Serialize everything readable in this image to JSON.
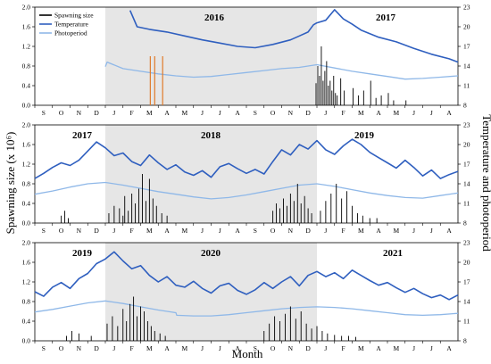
{
  "figure": {
    "left_axis_label": "Spawning size (x 10⁶)",
    "right_axis_label": "Temperature and photoperiod",
    "x_axis_label": "Month"
  },
  "legend": [
    {
      "label": "Spawning size",
      "color": "#000000"
    },
    {
      "label": "Temperature",
      "color": "#2f5fbf"
    },
    {
      "label": "Photoperiod",
      "color": "#8fb8e8"
    }
  ],
  "colors": {
    "temperature": "#2f5fbf",
    "photoperiod": "#8fb8e8",
    "spawning": "#000000",
    "marker": "#e07a2a",
    "shade": "#e6e6e6"
  },
  "chart_data": [
    {
      "type": "line",
      "panel": 1,
      "years": [
        "2016",
        "2017"
      ],
      "months": [
        "S",
        "O",
        "N",
        "D",
        "J",
        "F",
        "M",
        "A",
        "M",
        "J",
        "J",
        "A",
        "S",
        "O",
        "N",
        "D",
        "J",
        "F",
        "M",
        "A",
        "M",
        "J",
        "J",
        "A"
      ],
      "left_ticks": [
        "0.0",
        "0.4",
        "0.8",
        "1.2",
        "1.6",
        "2.0"
      ],
      "right_ticks": [
        "8",
        "11",
        "14",
        "17",
        "20",
        "23"
      ],
      "ylim_left": [
        0,
        2.0
      ],
      "ylim_right": [
        8,
        23
      ],
      "shaded_months": [
        4,
        16
      ],
      "series": [
        {
          "name": "Temperature",
          "x": [
            5.4,
            5.8,
            6.5,
            7.5,
            8.5,
            9.5,
            10.5,
            11.5,
            12.5,
            13.5,
            14.5,
            15.0,
            15.5,
            15.8,
            16.0,
            16.5,
            17.0,
            17.5,
            18.0,
            18.5,
            19.5,
            20.5,
            21.5,
            22.5,
            23.5,
            24.0
          ],
          "y": [
            22.5,
            20.0,
            19.6,
            19.2,
            18.6,
            18.0,
            17.5,
            17.0,
            16.8,
            17.3,
            18.0,
            18.6,
            19.2,
            20.3,
            20.6,
            21.0,
            22.6,
            21.2,
            20.4,
            19.5,
            18.4,
            17.7,
            16.7,
            15.8,
            15.1,
            14.6
          ]
        },
        {
          "name": "Photoperiod",
          "x": [
            4.0,
            4.1,
            5.0,
            6.0,
            7.0,
            8.0,
            9.0,
            10.0,
            11.0,
            12.0,
            13.0,
            14.0,
            15.0,
            16.0,
            17.0,
            18.0,
            19.0,
            20.0,
            21.0,
            22.0,
            23.0,
            24.0
          ],
          "y": [
            13.9,
            14.6,
            13.6,
            13.2,
            12.8,
            12.5,
            12.3,
            12.4,
            12.7,
            13.0,
            13.3,
            13.6,
            13.8,
            14.2,
            13.7,
            13.2,
            12.8,
            12.4,
            12.0,
            12.1,
            12.3,
            12.5
          ]
        },
        {
          "name": "Spawning size",
          "x": [
            15.95,
            16.05,
            16.15,
            16.25,
            16.35,
            16.45,
            16.55,
            16.65,
            16.75,
            16.85,
            16.95,
            17.05,
            17.15,
            17.35,
            17.55,
            18.05,
            18.35,
            18.65,
            19.05,
            19.35,
            19.65,
            20.05,
            20.35,
            21.05
          ],
          "y": [
            0.45,
            0.8,
            0.6,
            1.2,
            0.5,
            0.7,
            0.9,
            0.4,
            0.5,
            0.3,
            0.6,
            0.25,
            0.2,
            0.55,
            0.3,
            0.35,
            0.2,
            0.3,
            0.5,
            0.15,
            0.2,
            0.25,
            0.1,
            0.1
          ]
        },
        {
          "name": "",
          "x": [
            6.55,
            6.8,
            7.25
          ],
          "y": [
            1.0,
            1.0,
            1.0
          ]
        }
      ]
    },
    {
      "type": "line",
      "panel": 2,
      "years": [
        "2017",
        "2018",
        "2019"
      ],
      "months": [
        "S",
        "O",
        "N",
        "D",
        "J",
        "F",
        "M",
        "A",
        "M",
        "J",
        "J",
        "A",
        "S",
        "O",
        "N",
        "D",
        "J",
        "F",
        "M",
        "A",
        "M",
        "J",
        "J",
        "A"
      ],
      "left_ticks": [
        "0.0",
        "0.4",
        "0.8",
        "1.2",
        "1.6",
        "2.0"
      ],
      "right_ticks": [
        "8",
        "11",
        "14",
        "17",
        "20",
        "23"
      ],
      "ylim_left": [
        0,
        2.0
      ],
      "ylim_right": [
        8,
        23
      ],
      "shaded_months": [
        4,
        16
      ],
      "series": [
        {
          "name": "Temperature",
          "x": [
            0.0,
            0.5,
            1.0,
            1.5,
            2.0,
            2.5,
            3.0,
            3.5,
            4.0,
            4.5,
            5.0,
            5.5,
            6.0,
            6.5,
            7.0,
            7.5,
            8.0,
            8.5,
            9.0,
            9.5,
            10.0,
            10.5,
            11.0,
            11.5,
            12.0,
            12.5,
            13.0,
            13.5,
            14.0,
            14.5,
            15.0,
            15.5,
            16.0,
            16.5,
            17.0,
            17.5,
            18.0,
            18.5,
            19.0,
            19.5,
            20.0,
            20.5,
            21.0,
            21.5,
            22.0,
            22.5,
            23.0,
            23.5,
            24.0
          ],
          "y": [
            14.8,
            15.6,
            16.5,
            17.2,
            16.8,
            17.6,
            19.0,
            20.4,
            19.5,
            18.3,
            18.7,
            17.4,
            16.8,
            18.4,
            17.2,
            16.2,
            16.9,
            15.8,
            15.3,
            16.0,
            15.0,
            16.6,
            17.1,
            16.3,
            15.6,
            16.2,
            15.5,
            17.4,
            19.2,
            18.4,
            20.0,
            19.3,
            20.6,
            19.2,
            18.5,
            19.8,
            20.8,
            20.0,
            18.8,
            18.0,
            17.2,
            16.4,
            17.6,
            16.5,
            15.2,
            16.1,
            14.8,
            15.4,
            15.9
          ]
        },
        {
          "name": "Photoperiod",
          "x": [
            0.0,
            1.0,
            2.0,
            3.0,
            4.0,
            5.0,
            6.0,
            7.0,
            8.0,
            9.0,
            10.0,
            11.0,
            12.0,
            13.0,
            14.0,
            15.0,
            16.0,
            17.0,
            18.0,
            19.0,
            20.0,
            21.0,
            22.0,
            23.0,
            24.0
          ],
          "y": [
            12.4,
            12.9,
            13.5,
            14.0,
            14.2,
            13.8,
            13.3,
            12.8,
            12.4,
            12.0,
            11.7,
            11.9,
            12.3,
            12.8,
            13.3,
            13.8,
            14.0,
            13.6,
            13.1,
            12.6,
            12.2,
            11.9,
            11.8,
            12.2,
            12.6
          ]
        },
        {
          "name": "Spawning size",
          "x": [
            1.5,
            1.7,
            1.9,
            4.2,
            4.5,
            4.8,
            5.0,
            5.1,
            5.3,
            5.5,
            5.7,
            5.9,
            6.1,
            6.3,
            6.5,
            6.7,
            6.9,
            7.2,
            7.5,
            13.5,
            13.7,
            13.9,
            14.1,
            14.3,
            14.5,
            14.7,
            14.9,
            15.1,
            15.3,
            15.5,
            15.7,
            16.2,
            16.5,
            16.8,
            17.1,
            17.4,
            17.7,
            18.0,
            18.3,
            18.6,
            19.0,
            19.4
          ],
          "y": [
            0.15,
            0.25,
            0.1,
            0.2,
            0.35,
            0.3,
            0.15,
            0.55,
            0.25,
            0.6,
            0.4,
            0.7,
            1.0,
            0.45,
            0.9,
            0.5,
            0.35,
            0.2,
            0.15,
            0.25,
            0.4,
            0.3,
            0.5,
            0.35,
            0.6,
            0.45,
            0.8,
            0.4,
            0.55,
            0.3,
            0.2,
            0.25,
            0.45,
            0.6,
            0.8,
            0.5,
            0.65,
            0.35,
            0.2,
            0.15,
            0.1,
            0.1
          ]
        }
      ]
    },
    {
      "type": "line",
      "panel": 3,
      "years": [
        "2019",
        "2020",
        "2021"
      ],
      "months": [
        "S",
        "O",
        "N",
        "D",
        "J",
        "F",
        "M",
        "A",
        "M",
        "J",
        "J",
        "A",
        "S",
        "O",
        "N",
        "D",
        "J",
        "F",
        "M",
        "A",
        "M",
        "J",
        "J",
        "A"
      ],
      "left_ticks": [
        "0.0",
        "0.4",
        "0.8",
        "1.2",
        "1.6",
        "2.0"
      ],
      "right_ticks": [
        "8",
        "11",
        "14",
        "17",
        "20",
        "23"
      ],
      "ylim_left": [
        0,
        2.0
      ],
      "ylim_right": [
        8,
        23
      ],
      "shaded_months": [
        4,
        16
      ],
      "series": [
        {
          "name": "Temperature",
          "x": [
            0.0,
            0.5,
            1.0,
            1.5,
            2.0,
            2.5,
            3.0,
            3.5,
            4.0,
            4.5,
            5.0,
            5.5,
            6.0,
            6.5,
            7.0,
            7.5,
            8.0,
            8.5,
            9.0,
            9.5,
            10.0,
            10.5,
            11.0,
            11.5,
            12.0,
            12.5,
            13.0,
            13.5,
            14.0,
            14.5,
            15.0,
            15.5,
            16.0,
            16.5,
            17.0,
            17.5,
            18.0,
            18.5,
            19.0,
            19.5,
            20.0,
            20.5,
            21.0,
            21.5,
            22.0,
            22.5,
            23.0,
            23.5,
            24.0
          ],
          "y": [
            15.5,
            14.8,
            16.2,
            16.9,
            16.0,
            17.5,
            18.3,
            19.8,
            20.5,
            21.6,
            20.2,
            19.0,
            19.5,
            18.0,
            17.0,
            17.8,
            16.5,
            16.2,
            17.1,
            16.0,
            15.3,
            16.4,
            16.8,
            15.7,
            15.1,
            15.8,
            16.9,
            16.0,
            17.0,
            17.8,
            16.4,
            18.0,
            18.6,
            17.8,
            18.4,
            17.5,
            18.8,
            18.0,
            17.2,
            16.5,
            16.9,
            16.1,
            15.4,
            16.0,
            15.2,
            14.6,
            15.0,
            14.3,
            15.0
          ]
        },
        {
          "name": "Photoperiod",
          "x": [
            0.0,
            1.0,
            2.0,
            3.0,
            4.0,
            5.0,
            6.0,
            7.0,
            8.0,
            8.05,
            9.0,
            10.0,
            11.0,
            12.0,
            13.0,
            14.0,
            15.0,
            16.0,
            17.0,
            18.0,
            19.0,
            20.0,
            21.0,
            22.0,
            23.0,
            24.0
          ],
          "y": [
            12.4,
            12.8,
            13.3,
            13.8,
            14.1,
            13.7,
            13.2,
            12.7,
            12.3,
            11.9,
            11.8,
            11.8,
            12.0,
            12.3,
            12.6,
            12.9,
            13.1,
            13.2,
            13.1,
            12.9,
            12.6,
            12.3,
            12.0,
            11.9,
            12.0,
            12.2
          ]
        },
        {
          "name": "Spawning size",
          "x": [
            1.8,
            2.1,
            2.5,
            3.2,
            4.1,
            4.4,
            4.7,
            5.0,
            5.2,
            5.4,
            5.6,
            5.8,
            6.0,
            6.2,
            6.4,
            6.6,
            6.8,
            7.1,
            7.4,
            13.0,
            13.3,
            13.6,
            13.9,
            14.2,
            14.5,
            14.8,
            15.1,
            15.4,
            15.7,
            16.0,
            16.3,
            16.6,
            17.0,
            17.4,
            17.8,
            18.2
          ],
          "y": [
            0.1,
            0.2,
            0.15,
            0.1,
            0.35,
            0.5,
            0.3,
            0.65,
            0.4,
            0.75,
            0.9,
            0.5,
            0.7,
            0.6,
            0.4,
            0.3,
            0.2,
            0.15,
            0.1,
            0.2,
            0.35,
            0.5,
            0.4,
            0.55,
            0.7,
            0.45,
            0.6,
            0.35,
            0.25,
            0.3,
            0.2,
            0.15,
            0.12,
            0.1,
            0.1,
            0.08
          ]
        }
      ]
    }
  ]
}
